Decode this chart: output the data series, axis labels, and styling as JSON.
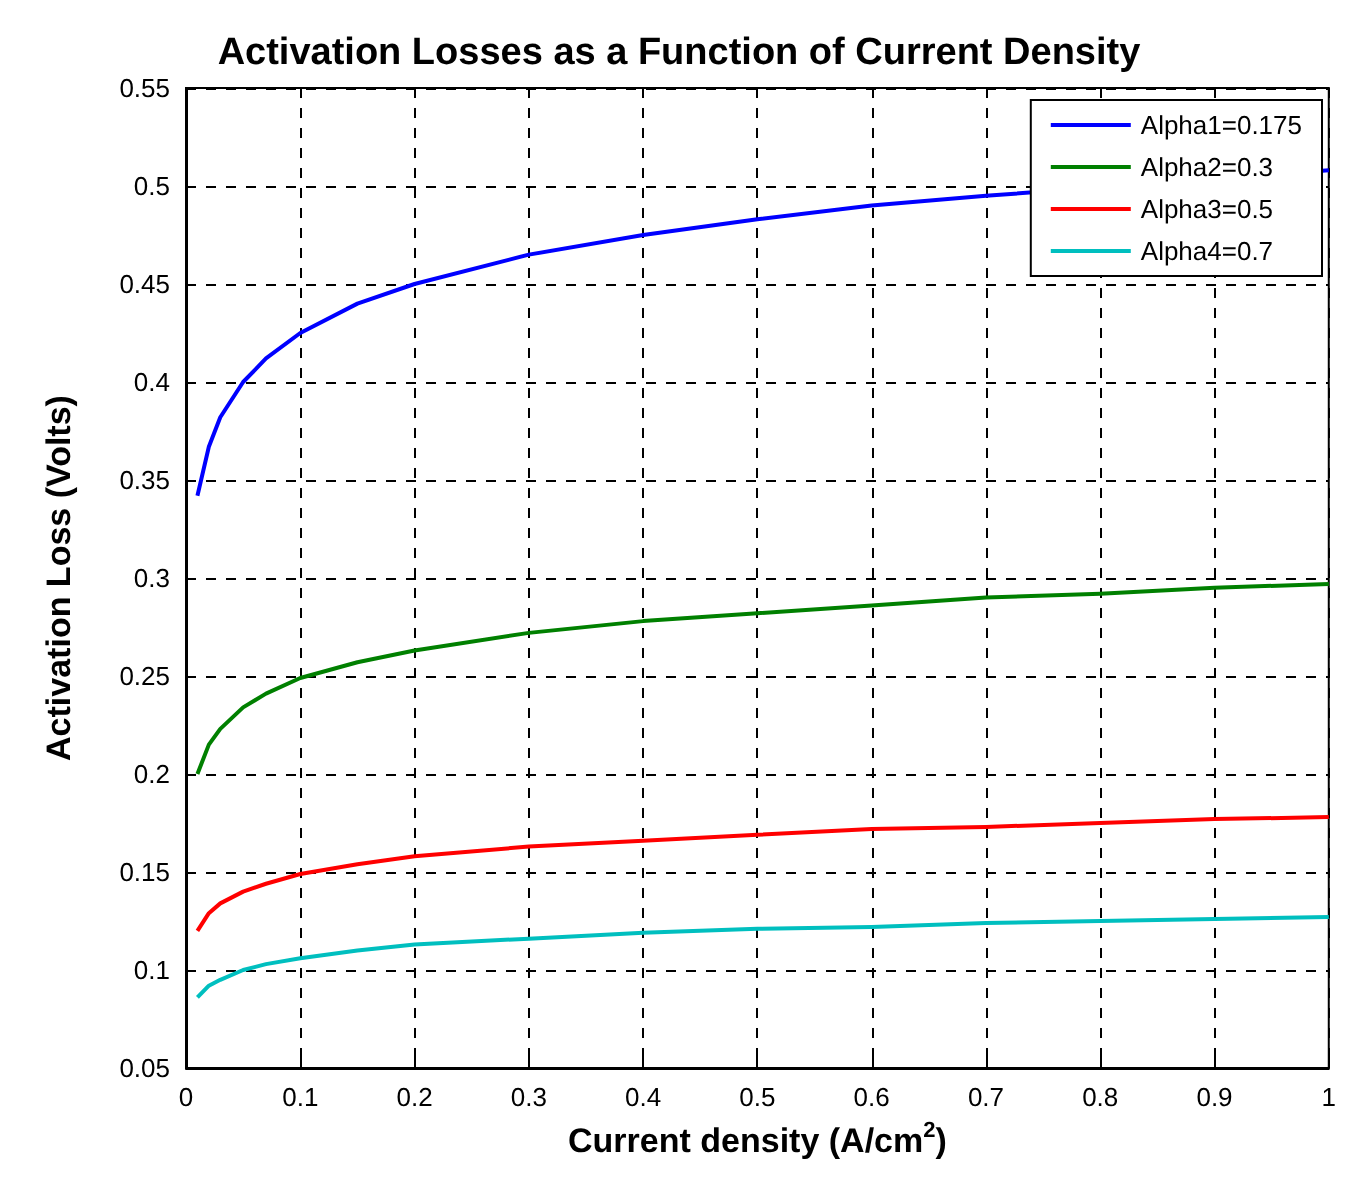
{
  "chart_data": {
    "type": "line",
    "title": "Activation Losses as a Function of Current Density",
    "xlabel": "Current density (A/cm$^{2}$)",
    "ylabel": "Activation Loss (Volts)",
    "x": [
      0.01,
      0.02,
      0.03,
      0.05,
      0.07,
      0.1,
      0.15,
      0.2,
      0.3,
      0.4,
      0.5,
      0.6,
      0.7,
      0.8,
      0.9,
      1.0
    ],
    "series": [
      {
        "name": "Alpha1=0.175",
        "color": "#0000ff",
        "values": [
          0.342,
          0.367,
          0.382,
          0.4,
          0.412,
          0.425,
          0.44,
          0.45,
          0.465,
          0.475,
          0.483,
          0.49,
          0.495,
          null,
          null,
          0.508
        ]
      },
      {
        "name": "Alpha2=0.3",
        "color": "#008000",
        "values": [
          0.2,
          0.215,
          0.223,
          0.234,
          0.241,
          0.249,
          0.257,
          0.263,
          0.272,
          0.278,
          0.282,
          0.286,
          0.29,
          0.292,
          0.295,
          0.297
        ]
      },
      {
        "name": "Alpha3=0.5",
        "color": "#ff0000",
        "values": [
          0.12,
          0.129,
          0.134,
          0.14,
          0.144,
          0.149,
          0.154,
          0.158,
          0.163,
          0.166,
          0.169,
          0.172,
          0.173,
          0.175,
          0.177,
          0.178
        ]
      },
      {
        "name": "Alpha4=0.7",
        "color": "#00bfbf",
        "values": [
          0.086,
          0.092,
          0.095,
          0.1,
          0.103,
          0.106,
          0.11,
          0.113,
          0.116,
          0.119,
          0.121,
          0.122,
          0.124,
          0.125,
          0.126,
          0.127
        ]
      }
    ],
    "xlim": [
      0,
      1
    ],
    "xticks": [
      0,
      0.1,
      0.2,
      0.3,
      0.4,
      0.5,
      0.6,
      0.7,
      0.8,
      0.9,
      1
    ],
    "ylim": [
      0.05,
      0.55
    ],
    "yticks": [
      0.05,
      0.1,
      0.15,
      0.2,
      0.25,
      0.3,
      0.35,
      0.4,
      0.45,
      0.5,
      0.55
    ],
    "grid": true,
    "legend": "top right",
    "marker": "none",
    "line_style": "solid"
  }
}
